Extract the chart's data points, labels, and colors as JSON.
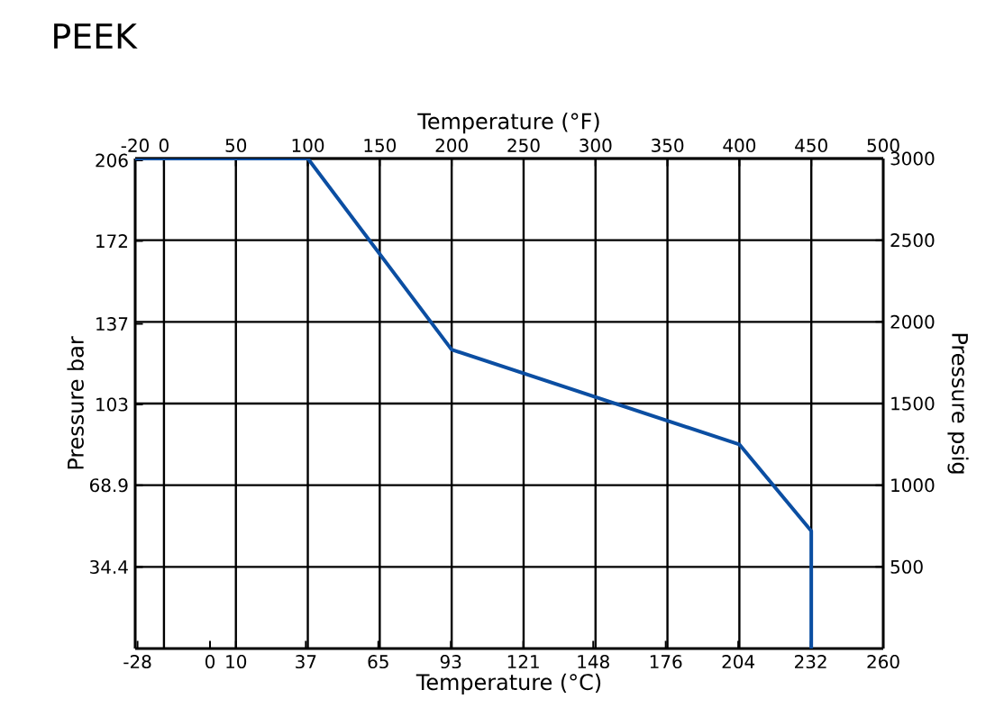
{
  "chart_data": {
    "type": "line",
    "title": "PEEK",
    "xlabel": "Temperature (°C)",
    "x2label": "Temperature (°F)",
    "ylabel": "Pressure bar",
    "y2label": "Pressure psig",
    "x": [
      -28.9,
      37.8,
      93.3,
      204.4,
      232.2,
      232.2
    ],
    "series": [
      {
        "color": "#0b4ea2",
        "axis": "y2",
        "values": [
          3000,
          3000,
          1830,
          1250,
          720,
          0
        ]
      }
    ],
    "xlim": [
      -28.9,
      260
    ],
    "x2lim": [
      -20,
      500
    ],
    "xticks": [
      -28,
      0,
      10,
      37,
      65,
      93,
      121,
      148,
      176,
      204,
      232,
      260
    ],
    "x2ticks": [
      -20,
      0,
      50,
      100,
      150,
      200,
      250,
      300,
      350,
      400,
      450,
      500
    ],
    "ylim": [
      0,
      206.8
    ],
    "y2lim": [
      0,
      3000
    ],
    "yticks": [
      34.4,
      68.9,
      103,
      137,
      172,
      206
    ],
    "y2ticks": [
      500,
      1000,
      1500,
      2000,
      2500,
      3000
    ],
    "grid": true,
    "line_style": "solid"
  }
}
